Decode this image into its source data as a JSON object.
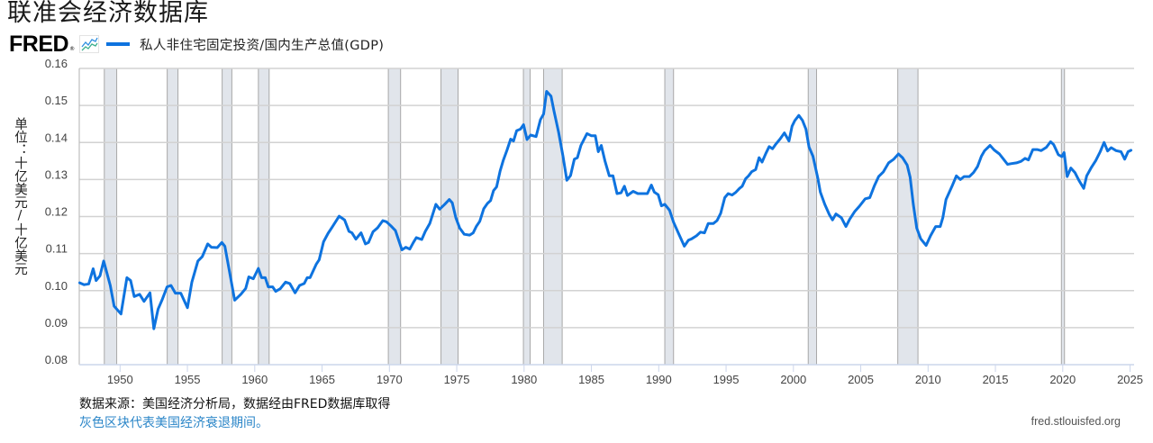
{
  "header": {
    "title": "联准会经济数据库",
    "logo_text": "FRED",
    "logo_mark": "®",
    "icon": "line-chart-icon"
  },
  "colors": {
    "series_line": "#0e73df",
    "recession_fill": "#e1e5eb",
    "recession_edge": "#a8a8a8",
    "gridline": "#d2d2d2",
    "axis_line": "#ccd6eb",
    "note_link": "#2b86c8"
  },
  "footer": {
    "source": "数据来源：美国经济分析局，数据经由FRED数据库取得",
    "note": "灰色区块代表美国经济衰退期间。",
    "url": "fred.stlouisfed.org"
  },
  "chart_data": {
    "type": "line",
    "title": "",
    "xlabel": "",
    "ylabel": "单位：十亿美元/十亿美元",
    "ylim": [
      0.08,
      0.16
    ],
    "xlim": [
      1947,
      2025.3
    ],
    "grid": "horizontal",
    "legend_position": "top-left",
    "y_ticks": [
      "0.08",
      "0.09",
      "0.10",
      "0.11",
      "0.12",
      "0.13",
      "0.14",
      "0.15",
      "0.16"
    ],
    "x_ticks": [
      "1950",
      "1955",
      "1960",
      "1965",
      "1970",
      "1975",
      "1980",
      "1985",
      "1990",
      "1995",
      "2000",
      "2005",
      "2010",
      "2015",
      "2020",
      "2025"
    ],
    "recessions": [
      [
        1948.83,
        1949.75
      ],
      [
        1953.5,
        1954.3
      ],
      [
        1957.58,
        1958.3
      ],
      [
        1960.27,
        1961.07
      ],
      [
        1969.92,
        1970.83
      ],
      [
        1973.83,
        1975.1
      ],
      [
        1979.95,
        1980.45
      ],
      [
        1981.45,
        1982.83
      ],
      [
        1990.45,
        1991.1
      ],
      [
        2001.1,
        2001.72
      ],
      [
        2007.75,
        2009.25
      ],
      [
        2019.9,
        2020.13
      ]
    ],
    "series": [
      {
        "name": "私人非住宅固定投资/国内生产总值(GDP)",
        "points": [
          [
            1947.0,
            0.1021
          ],
          [
            1947.33,
            0.1016
          ],
          [
            1947.67,
            0.1018
          ],
          [
            1948.0,
            0.1059
          ],
          [
            1948.22,
            0.1027
          ],
          [
            1948.51,
            0.104
          ],
          [
            1948.78,
            0.108
          ],
          [
            1949.27,
            0.1014
          ],
          [
            1949.56,
            0.0958
          ],
          [
            1950.07,
            0.0937
          ],
          [
            1950.51,
            0.1035
          ],
          [
            1950.78,
            0.1027
          ],
          [
            1951.05,
            0.0984
          ],
          [
            1951.45,
            0.099
          ],
          [
            1951.78,
            0.0971
          ],
          [
            1952.22,
            0.0994
          ],
          [
            1952.51,
            0.0897
          ],
          [
            1952.82,
            0.095
          ],
          [
            1953.11,
            0.0974
          ],
          [
            1953.49,
            0.101
          ],
          [
            1953.78,
            0.1014
          ],
          [
            1954.11,
            0.0993
          ],
          [
            1954.51,
            0.0993
          ],
          [
            1955.0,
            0.0954
          ],
          [
            1955.33,
            0.1023
          ],
          [
            1955.78,
            0.108
          ],
          [
            1956.11,
            0.1092
          ],
          [
            1956.51,
            0.1126
          ],
          [
            1956.78,
            0.1117
          ],
          [
            1957.22,
            0.1116
          ],
          [
            1957.56,
            0.113
          ],
          [
            1957.78,
            0.112
          ],
          [
            1958.11,
            0.1055
          ],
          [
            1958.51,
            0.0974
          ],
          [
            1958.96,
            0.099
          ],
          [
            1959.33,
            0.1006
          ],
          [
            1959.56,
            0.1037
          ],
          [
            1959.89,
            0.1032
          ],
          [
            1960.27,
            0.106
          ],
          [
            1960.51,
            0.1035
          ],
          [
            1960.78,
            0.1035
          ],
          [
            1961.0,
            0.101
          ],
          [
            1961.33,
            0.101
          ],
          [
            1961.56,
            0.0998
          ],
          [
            1961.89,
            0.1005
          ],
          [
            1962.29,
            0.1023
          ],
          [
            1962.6,
            0.1019
          ],
          [
            1963.0,
            0.0994
          ],
          [
            1963.33,
            0.1014
          ],
          [
            1963.67,
            0.1019
          ],
          [
            1963.89,
            0.1035
          ],
          [
            1964.11,
            0.1035
          ],
          [
            1964.56,
            0.1071
          ],
          [
            1964.78,
            0.1083
          ],
          [
            1965.11,
            0.1132
          ],
          [
            1965.45,
            0.1155
          ],
          [
            1965.78,
            0.1173
          ],
          [
            1966.27,
            0.1201
          ],
          [
            1966.67,
            0.1191
          ],
          [
            1967.0,
            0.116
          ],
          [
            1967.22,
            0.1156
          ],
          [
            1967.51,
            0.1139
          ],
          [
            1967.89,
            0.1156
          ],
          [
            1968.22,
            0.1126
          ],
          [
            1968.45,
            0.113
          ],
          [
            1968.78,
            0.1159
          ],
          [
            1969.11,
            0.1169
          ],
          [
            1969.51,
            0.1189
          ],
          [
            1969.78,
            0.1186
          ],
          [
            1970.11,
            0.1175
          ],
          [
            1970.45,
            0.1162
          ],
          [
            1970.93,
            0.111
          ],
          [
            1971.22,
            0.1117
          ],
          [
            1971.51,
            0.1112
          ],
          [
            1971.78,
            0.113
          ],
          [
            1972.0,
            0.1143
          ],
          [
            1972.4,
            0.1138
          ],
          [
            1972.67,
            0.116
          ],
          [
            1973.0,
            0.1181
          ],
          [
            1973.45,
            0.1233
          ],
          [
            1973.73,
            0.122
          ],
          [
            1974.11,
            0.1233
          ],
          [
            1974.45,
            0.1246
          ],
          [
            1974.67,
            0.1237
          ],
          [
            1974.93,
            0.1197
          ],
          [
            1975.22,
            0.1169
          ],
          [
            1975.56,
            0.1152
          ],
          [
            1975.96,
            0.115
          ],
          [
            1976.22,
            0.1156
          ],
          [
            1976.45,
            0.1173
          ],
          [
            1976.71,
            0.1187
          ],
          [
            1977.0,
            0.1221
          ],
          [
            1977.29,
            0.1236
          ],
          [
            1977.51,
            0.1243
          ],
          [
            1977.73,
            0.127
          ],
          [
            1977.96,
            0.128
          ],
          [
            1978.22,
            0.1323
          ],
          [
            1978.45,
            0.1351
          ],
          [
            1978.73,
            0.1379
          ],
          [
            1979.0,
            0.1409
          ],
          [
            1979.22,
            0.1404
          ],
          [
            1979.45,
            0.1432
          ],
          [
            1979.73,
            0.1436
          ],
          [
            1979.96,
            0.1448
          ],
          [
            1980.22,
            0.1408
          ],
          [
            1980.49,
            0.142
          ],
          [
            1980.89,
            0.1416
          ],
          [
            1981.22,
            0.1462
          ],
          [
            1981.45,
            0.1477
          ],
          [
            1981.67,
            0.1538
          ],
          [
            1982.0,
            0.1525
          ],
          [
            1982.22,
            0.1485
          ],
          [
            1982.56,
            0.1428
          ],
          [
            1982.89,
            0.1363
          ],
          [
            1983.18,
            0.1298
          ],
          [
            1983.45,
            0.1311
          ],
          [
            1983.73,
            0.1355
          ],
          [
            1983.96,
            0.1359
          ],
          [
            1984.22,
            0.1392
          ],
          [
            1984.67,
            0.1424
          ],
          [
            1985.0,
            0.1418
          ],
          [
            1985.29,
            0.1418
          ],
          [
            1985.51,
            0.1375
          ],
          [
            1985.73,
            0.1392
          ],
          [
            1986.0,
            0.1351
          ],
          [
            1986.33,
            0.131
          ],
          [
            1986.6,
            0.131
          ],
          [
            1986.9,
            0.1262
          ],
          [
            1987.2,
            0.1264
          ],
          [
            1987.45,
            0.1282
          ],
          [
            1987.67,
            0.1257
          ],
          [
            1988.1,
            0.1268
          ],
          [
            1988.45,
            0.1262
          ],
          [
            1988.8,
            0.1262
          ],
          [
            1989.16,
            0.1262
          ],
          [
            1989.45,
            0.1285
          ],
          [
            1989.67,
            0.1266
          ],
          [
            1989.96,
            0.1259
          ],
          [
            1990.2,
            0.1229
          ],
          [
            1990.45,
            0.1233
          ],
          [
            1990.8,
            0.1217
          ],
          [
            1991.1,
            0.1185
          ],
          [
            1991.45,
            0.1156
          ],
          [
            1991.9,
            0.112
          ],
          [
            1992.2,
            0.1136
          ],
          [
            1992.45,
            0.114
          ],
          [
            1992.8,
            0.1148
          ],
          [
            1993.1,
            0.1158
          ],
          [
            1993.4,
            0.1156
          ],
          [
            1993.67,
            0.1181
          ],
          [
            1994.05,
            0.1181
          ],
          [
            1994.33,
            0.1189
          ],
          [
            1994.6,
            0.1209
          ],
          [
            1994.9,
            0.1251
          ],
          [
            1995.16,
            0.1262
          ],
          [
            1995.45,
            0.1258
          ],
          [
            1995.73,
            0.1266
          ],
          [
            1996.0,
            0.1276
          ],
          [
            1996.2,
            0.1282
          ],
          [
            1996.45,
            0.1302
          ],
          [
            1996.67,
            0.131
          ],
          [
            1996.9,
            0.1321
          ],
          [
            1997.2,
            0.1327
          ],
          [
            1997.45,
            0.1359
          ],
          [
            1997.67,
            0.1347
          ],
          [
            1997.96,
            0.1371
          ],
          [
            1998.2,
            0.1389
          ],
          [
            1998.45,
            0.1383
          ],
          [
            1998.7,
            0.1396
          ],
          [
            1999.0,
            0.1409
          ],
          [
            1999.33,
            0.1426
          ],
          [
            1999.67,
            0.1404
          ],
          [
            1999.9,
            0.1444
          ],
          [
            2000.1,
            0.1459
          ],
          [
            2000.4,
            0.1473
          ],
          [
            2000.67,
            0.146
          ],
          [
            2000.93,
            0.1436
          ],
          [
            2001.16,
            0.1388
          ],
          [
            2001.45,
            0.1363
          ],
          [
            2001.8,
            0.1306
          ],
          [
            2002.0,
            0.1266
          ],
          [
            2002.33,
            0.1233
          ],
          [
            2002.67,
            0.1205
          ],
          [
            2002.9,
            0.1191
          ],
          [
            2003.16,
            0.1207
          ],
          [
            2003.56,
            0.1197
          ],
          [
            2003.9,
            0.1173
          ],
          [
            2004.18,
            0.1193
          ],
          [
            2004.56,
            0.1214
          ],
          [
            2004.9,
            0.1228
          ],
          [
            2005.33,
            0.1248
          ],
          [
            2005.67,
            0.1251
          ],
          [
            2006.0,
            0.1282
          ],
          [
            2006.33,
            0.1308
          ],
          [
            2006.67,
            0.132
          ],
          [
            2007.07,
            0.1345
          ],
          [
            2007.45,
            0.1355
          ],
          [
            2007.8,
            0.1369
          ],
          [
            2008.1,
            0.1359
          ],
          [
            2008.45,
            0.1339
          ],
          [
            2008.67,
            0.1306
          ],
          [
            2008.9,
            0.1233
          ],
          [
            2009.16,
            0.1169
          ],
          [
            2009.45,
            0.114
          ],
          [
            2009.85,
            0.1122
          ],
          [
            2010.18,
            0.1148
          ],
          [
            2010.56,
            0.1173
          ],
          [
            2010.9,
            0.1173
          ],
          [
            2011.1,
            0.1197
          ],
          [
            2011.33,
            0.1246
          ],
          [
            2011.78,
            0.1282
          ],
          [
            2012.1,
            0.131
          ],
          [
            2012.4,
            0.13
          ],
          [
            2012.67,
            0.1308
          ],
          [
            2013.07,
            0.1308
          ],
          [
            2013.38,
            0.1319
          ],
          [
            2013.67,
            0.1335
          ],
          [
            2013.96,
            0.1363
          ],
          [
            2014.2,
            0.1378
          ],
          [
            2014.6,
            0.1392
          ],
          [
            2014.9,
            0.138
          ],
          [
            2015.3,
            0.1369
          ],
          [
            2015.56,
            0.1357
          ],
          [
            2015.9,
            0.1341
          ],
          [
            2016.2,
            0.1343
          ],
          [
            2016.56,
            0.1345
          ],
          [
            2016.9,
            0.1349
          ],
          [
            2017.2,
            0.1357
          ],
          [
            2017.45,
            0.1353
          ],
          [
            2017.78,
            0.1381
          ],
          [
            2018.1,
            0.1381
          ],
          [
            2018.4,
            0.1378
          ],
          [
            2018.78,
            0.1387
          ],
          [
            2019.1,
            0.1402
          ],
          [
            2019.33,
            0.1394
          ],
          [
            2019.67,
            0.1367
          ],
          [
            2019.93,
            0.1362
          ],
          [
            2020.1,
            0.1373
          ],
          [
            2020.33,
            0.1308
          ],
          [
            2020.6,
            0.1331
          ],
          [
            2020.9,
            0.1319
          ],
          [
            2021.2,
            0.1298
          ],
          [
            2021.56,
            0.1276
          ],
          [
            2021.78,
            0.131
          ],
          [
            2022.1,
            0.1331
          ],
          [
            2022.45,
            0.1351
          ],
          [
            2022.78,
            0.1375
          ],
          [
            2023.07,
            0.14
          ],
          [
            2023.33,
            0.1377
          ],
          [
            2023.6,
            0.1386
          ],
          [
            2023.96,
            0.1378
          ],
          [
            2024.33,
            0.1375
          ],
          [
            2024.6,
            0.1355
          ],
          [
            2024.85,
            0.1375
          ],
          [
            2025.07,
            0.1379
          ]
        ]
      }
    ]
  }
}
